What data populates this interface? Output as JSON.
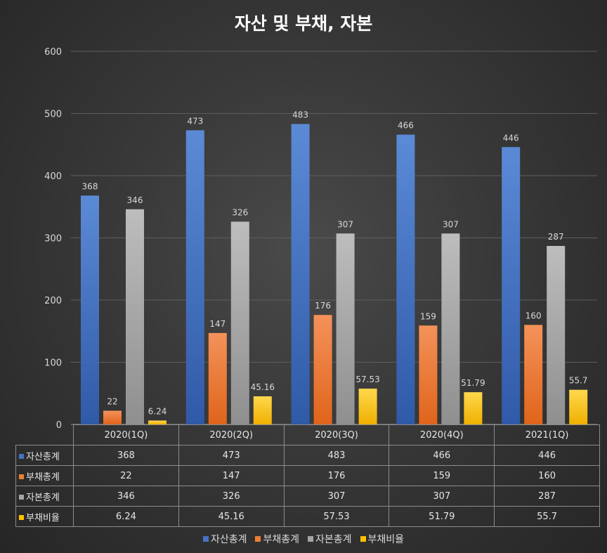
{
  "chart_data": {
    "type": "bar",
    "title": "자산 및 부채, 자본",
    "categories": [
      "2020(1Q)",
      "2020(2Q)",
      "2020(3Q)",
      "2020(4Q)",
      "2021(1Q)"
    ],
    "series": [
      {
        "name": "자산총계",
        "values": [
          368,
          473,
          483,
          466,
          446
        ],
        "labels": [
          "368",
          "473",
          "483",
          "466",
          "446"
        ],
        "color": "#4472c4"
      },
      {
        "name": "부채총계",
        "values": [
          22,
          147,
          176,
          159,
          160
        ],
        "labels": [
          "22",
          "147",
          "176",
          "159",
          "160"
        ],
        "color": "#ed7d31"
      },
      {
        "name": "자본총계",
        "values": [
          346,
          326,
          307,
          307,
          287
        ],
        "labels": [
          "346",
          "326",
          "307",
          "307",
          "287"
        ],
        "color": "#a5a5a5"
      },
      {
        "name": "부채비율",
        "values": [
          6.24,
          45.16,
          57.53,
          51.79,
          55.7
        ],
        "labels": [
          "6.24",
          "45.16",
          "57.53",
          "51.79",
          "55.7"
        ],
        "color": "#ffc000"
      }
    ],
    "yticks": [
      "0",
      "100",
      "200",
      "300",
      "400",
      "500",
      "600"
    ],
    "ylim": [
      0,
      600
    ],
    "grid": true,
    "legend": "bottom",
    "data_table": true
  }
}
